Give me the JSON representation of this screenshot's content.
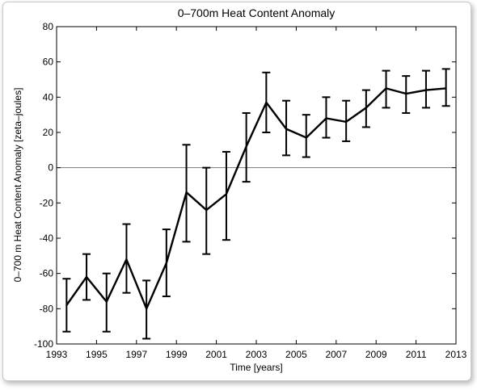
{
  "chart_data": {
    "type": "line",
    "title": "0–700m Heat Content Anomaly",
    "xlabel": "Time [years]",
    "ylabel": "0–700 m Heat Content Anomaly [zeta–joules]",
    "xlim": [
      1993,
      2013
    ],
    "ylim": [
      -100,
      80
    ],
    "x_ticks": [
      1993,
      1995,
      1997,
      1999,
      2001,
      2003,
      2005,
      2007,
      2009,
      2011,
      2013
    ],
    "y_ticks": [
      -100,
      -80,
      -60,
      -40,
      -20,
      0,
      20,
      40,
      60,
      80
    ],
    "grid": false,
    "zero_line": true,
    "series": [
      {
        "x": [
          1993.5,
          1994.5,
          1995.5,
          1996.5,
          1997.5,
          1998.5,
          1999.5,
          2000.5,
          2001.5,
          2002.5,
          2003.5,
          2004.5,
          2005.5,
          2006.5,
          2007.5,
          2008.5,
          2009.5,
          2010.5,
          2011.5,
          2012.5
        ],
        "y": [
          -78,
          -62,
          -76,
          -52,
          -80,
          -54,
          -14,
          -24,
          -15,
          12,
          37,
          22,
          17,
          28,
          26,
          34,
          45,
          42,
          44,
          45
        ],
        "err_low": [
          -93,
          -75,
          -93,
          -71,
          -97,
          -73,
          -42,
          -49,
          -41,
          -8,
          20,
          7,
          6,
          17,
          15,
          23,
          34,
          31,
          34,
          35
        ],
        "err_high": [
          -63,
          -49,
          -60,
          -32,
          -64,
          -35,
          13,
          0,
          9,
          31,
          54,
          38,
          30,
          40,
          38,
          44,
          55,
          52,
          55,
          56
        ]
      }
    ]
  }
}
